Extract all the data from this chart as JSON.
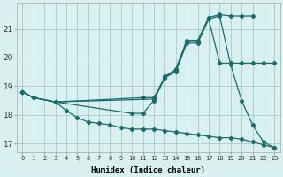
{
  "xlabel": "Humidex (Indice chaleur)",
  "bg_color": "#d8f0f0",
  "grid_color": "#b0cccc",
  "line_color": "#1a6b6b",
  "xlim": [
    -0.5,
    23.5
  ],
  "ylim": [
    16.7,
    21.9
  ],
  "xticks": [
    0,
    1,
    2,
    3,
    4,
    5,
    6,
    7,
    8,
    9,
    10,
    11,
    12,
    13,
    14,
    15,
    16,
    17,
    18,
    19,
    20,
    21,
    22,
    23
  ],
  "yticks": [
    17,
    18,
    19,
    20,
    21
  ],
  "line1_x": [
    0,
    1,
    3,
    11,
    12,
    13,
    14,
    15,
    16,
    17,
    18,
    19,
    20,
    21
  ],
  "line1_y": [
    18.8,
    18.6,
    18.45,
    18.6,
    18.6,
    19.3,
    19.6,
    20.6,
    20.6,
    21.4,
    21.5,
    21.45,
    21.45,
    21.45
  ],
  "line2_x": [
    0,
    1,
    3,
    12,
    13,
    14,
    15,
    16,
    17,
    18,
    19,
    20,
    21,
    22,
    23
  ],
  "line2_y": [
    18.8,
    18.6,
    18.45,
    18.55,
    19.35,
    19.55,
    20.55,
    20.55,
    21.35,
    21.45,
    19.75,
    18.5,
    17.65,
    17.05,
    16.85
  ],
  "line3_x": [
    0,
    1,
    3,
    10,
    11,
    12,
    13,
    14,
    15,
    16,
    17,
    18,
    19,
    20,
    21,
    22,
    23
  ],
  "line3_y": [
    18.8,
    18.6,
    18.45,
    18.05,
    18.05,
    18.5,
    19.3,
    19.5,
    20.5,
    20.5,
    21.35,
    19.8,
    19.8,
    19.8,
    19.8,
    19.8,
    19.8
  ],
  "line4_x": [
    0,
    1,
    3,
    4,
    5,
    6,
    7,
    8,
    9,
    10,
    11,
    12,
    13,
    14,
    15,
    16,
    17,
    18,
    19,
    20,
    21,
    22,
    23
  ],
  "line4_y": [
    18.8,
    18.6,
    18.45,
    18.15,
    17.9,
    17.75,
    17.7,
    17.65,
    17.55,
    17.5,
    17.5,
    17.5,
    17.45,
    17.4,
    17.35,
    17.3,
    17.25,
    17.2,
    17.2,
    17.15,
    17.05,
    16.95,
    16.85
  ]
}
